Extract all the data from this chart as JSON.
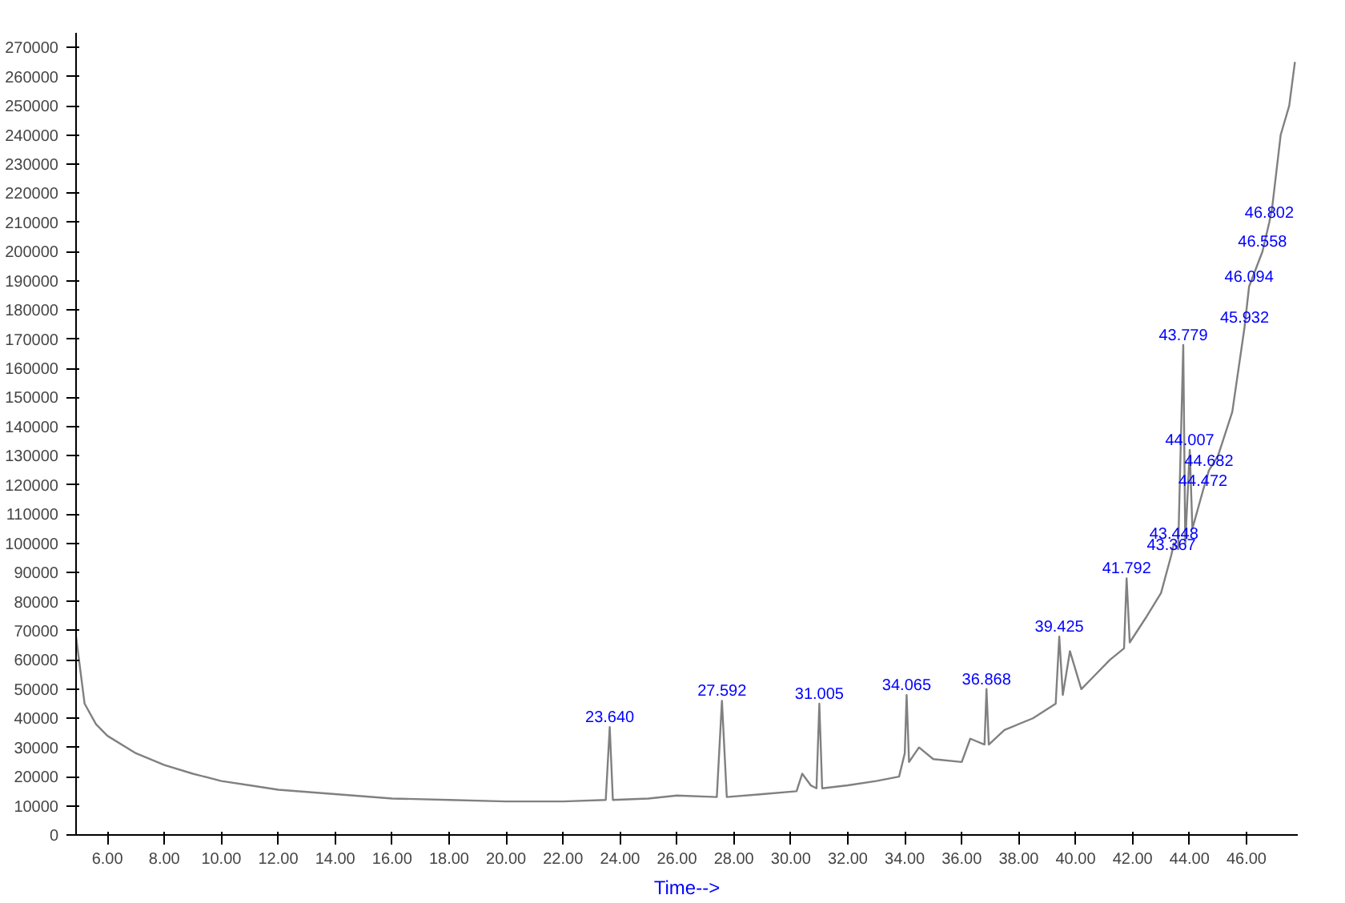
{
  "chart_data": {
    "type": "line",
    "xlabel": "Time-->",
    "x": [
      4.9,
      5.2,
      5.6,
      6,
      7,
      8,
      9,
      10,
      11,
      12,
      14,
      16,
      18,
      20,
      22,
      23.5,
      23.64,
      23.75,
      25,
      26,
      27.4,
      27.58,
      27.75,
      29,
      30.2,
      30.4,
      30.7,
      30.9,
      31.0,
      31.1,
      32,
      33,
      33.8,
      34.0,
      34.065,
      34.15,
      34.5,
      35,
      36,
      36.3,
      36.8,
      36.87,
      36.95,
      37.5,
      38.5,
      39.3,
      39.425,
      39.55,
      39.8,
      40.2,
      40.6,
      41.2,
      41.7,
      41.79,
      41.9,
      42.5,
      43.0,
      43.36,
      43.45,
      43.6,
      43.779,
      43.85,
      44.007,
      44.1,
      44.47,
      44.68,
      45.0,
      45.5,
      45.93,
      46.09,
      46.56,
      46.8,
      46.9,
      47.2,
      47.5,
      47.7
    ],
    "series": [
      {
        "color": "#808080",
        "values": [
          68000,
          45000,
          38000,
          34000,
          28000,
          24000,
          21000,
          18500,
          17000,
          15500,
          14000,
          12500,
          12000,
          11500,
          11500,
          12000,
          37000,
          12000,
          12500,
          13500,
          13000,
          46000,
          13000,
          14000,
          15000,
          21000,
          17000,
          16000,
          45000,
          16000,
          17000,
          18500,
          20000,
          28000,
          48000,
          25000,
          30000,
          26000,
          25000,
          33000,
          31000,
          50000,
          31000,
          36000,
          40000,
          45000,
          68000,
          48000,
          63000,
          50000,
          54000,
          60000,
          64000,
          88000,
          66000,
          75000,
          83000,
          96000,
          100000,
          98000,
          168000,
          100000,
          132000,
          105000,
          118000,
          125000,
          130000,
          145000,
          174000,
          188000,
          200000,
          210000,
          215000,
          240000,
          250000,
          265000
        ]
      }
    ],
    "xlim": [
      4.9,
      47.8
    ],
    "ylim": [
      0,
      275000
    ],
    "xticks": [
      {
        "value": 6,
        "label": "6.00"
      },
      {
        "value": 8,
        "label": "8.00"
      },
      {
        "value": 10,
        "label": "10.00"
      },
      {
        "value": 12,
        "label": "12.00"
      },
      {
        "value": 14,
        "label": "14.00"
      },
      {
        "value": 16,
        "label": "16.00"
      },
      {
        "value": 18,
        "label": "18.00"
      },
      {
        "value": 20,
        "label": "20.00"
      },
      {
        "value": 22,
        "label": "22.00"
      },
      {
        "value": 24,
        "label": "24.00"
      },
      {
        "value": 26,
        "label": "26.00"
      },
      {
        "value": 28,
        "label": "28.00"
      },
      {
        "value": 30,
        "label": "30.00"
      },
      {
        "value": 32,
        "label": "32.00"
      },
      {
        "value": 34,
        "label": "34.00"
      },
      {
        "value": 36,
        "label": "36.00"
      },
      {
        "value": 38,
        "label": "38.00"
      },
      {
        "value": 40,
        "label": "40.00"
      },
      {
        "value": 42,
        "label": "42.00"
      },
      {
        "value": 44,
        "label": "44.00"
      },
      {
        "value": 46,
        "label": "46.00"
      }
    ],
    "yticks": [
      0,
      10000,
      20000,
      30000,
      40000,
      50000,
      60000,
      70000,
      80000,
      90000,
      100000,
      110000,
      120000,
      130000,
      140000,
      150000,
      160000,
      170000,
      180000,
      190000,
      200000,
      210000,
      220000,
      230000,
      240000,
      250000,
      260000,
      270000
    ],
    "annotations": [
      {
        "text": "23.640",
        "x": 23.64,
        "y": 37000
      },
      {
        "text": "27.592",
        "x": 27.58,
        "y": 46000
      },
      {
        "text": "31.005",
        "x": 31.0,
        "y": 45000
      },
      {
        "text": "34.065",
        "x": 34.065,
        "y": 48000
      },
      {
        "text": "36.868",
        "x": 36.87,
        "y": 50000
      },
      {
        "text": "39.425",
        "x": 39.425,
        "y": 68000
      },
      {
        "text": "41.792",
        "x": 41.79,
        "y": 88000
      },
      {
        "text": "43.367",
        "x": 43.36,
        "y": 96000
      },
      {
        "text": "43.448",
        "x": 43.45,
        "y": 100000
      },
      {
        "text": "43.779",
        "x": 43.779,
        "y": 168000
      },
      {
        "text": "44.007",
        "x": 44.007,
        "y": 132000
      },
      {
        "text": "44.472",
        "x": 44.47,
        "y": 118000
      },
      {
        "text": "44.682",
        "x": 44.68,
        "y": 125000
      },
      {
        "text": "45.932",
        "x": 45.93,
        "y": 174000
      },
      {
        "text": "46.094",
        "x": 46.09,
        "y": 188000
      },
      {
        "text": "46.558",
        "x": 46.56,
        "y": 200000
      },
      {
        "text": "46.802",
        "x": 46.8,
        "y": 210000
      }
    ],
    "grid": false,
    "line_style": "solid"
  }
}
